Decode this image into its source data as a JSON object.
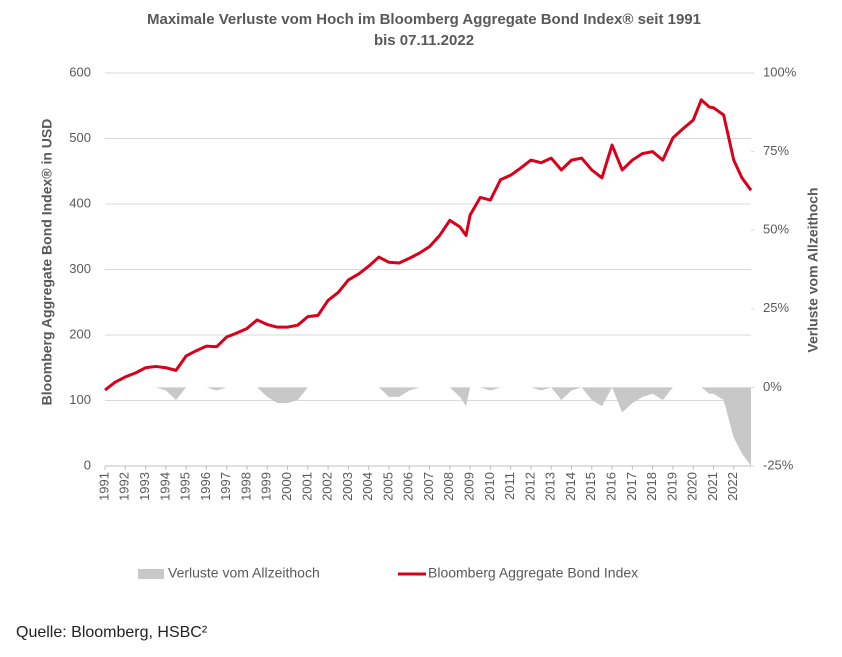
{
  "chart_data": {
    "type": "line",
    "title": [
      "Maximale Verluste vom Hoch im Bloomberg Aggregate Bond Index® seit 1991",
      "bis 07.11.2022"
    ],
    "y_label": "Bloomberg Aggregate Bond Index® in USD",
    "y2_label": "Verluste vom Allzeithoch",
    "source": "Quelle: Bloomberg, HSBC²",
    "x": [
      1991,
      1991.5,
      1992,
      1992.5,
      1993,
      1993.5,
      1994,
      1994.5,
      1995,
      1995.5,
      1996,
      1996.5,
      1997,
      1997.5,
      1998,
      1998.5,
      1999,
      1999.5,
      2000,
      2000.5,
      2001,
      2001.5,
      2002,
      2002.5,
      2003,
      2003.5,
      2004,
      2004.5,
      2005,
      2005.5,
      2006,
      2006.5,
      2007,
      2007.5,
      2008,
      2008.5,
      2008.8,
      2009,
      2009.5,
      2010,
      2010.5,
      2011,
      2011.5,
      2012,
      2012.5,
      2013,
      2013.5,
      2014,
      2014.5,
      2015,
      2015.5,
      2016,
      2016.5,
      2017,
      2017.5,
      2018,
      2018.5,
      2019,
      2019.5,
      2020,
      2020.4,
      2020.8,
      2021,
      2021.5,
      2022,
      2022.4,
      2022.85
    ],
    "xlim": [
      1991,
      2022.85
    ],
    "xticks": [
      1991,
      1992,
      1993,
      1994,
      1995,
      1996,
      1997,
      1998,
      1999,
      2000,
      2001,
      2002,
      2003,
      2004,
      2005,
      2006,
      2007,
      2008,
      2009,
      2010,
      2011,
      2012,
      2013,
      2014,
      2015,
      2016,
      2017,
      2018,
      2019,
      2020,
      2021,
      2022
    ],
    "ylim": [
      0,
      600
    ],
    "yticks": [
      0,
      100,
      200,
      300,
      400,
      500,
      600
    ],
    "y2lim": [
      -25,
      100
    ],
    "y2ticks": [
      {
        "value": -25,
        "label": "-25%"
      },
      {
        "value": 0,
        "label": "0%"
      },
      {
        "value": 25,
        "label": "25%"
      },
      {
        "value": 50,
        "label": "50%"
      },
      {
        "value": 75,
        "label": "75%"
      },
      {
        "value": 100,
        "label": "100%"
      }
    ],
    "grid": true,
    "series": [
      {
        "name": "Verluste vom Allzeithoch",
        "type": "area",
        "axis": "y2",
        "color": "#c8c8c8",
        "values": [
          0,
          0,
          0,
          0,
          0,
          0,
          -1,
          -4,
          0,
          0,
          0,
          -1,
          0,
          0,
          0,
          0,
          -3,
          -5,
          -5,
          -4,
          0,
          0,
          0,
          0,
          0,
          0,
          0,
          0,
          -3,
          -3,
          -1,
          0,
          0,
          0,
          0,
          -3,
          -6,
          0,
          0,
          -1,
          0,
          0,
          0,
          0,
          -1,
          0,
          -4,
          -1,
          0,
          -4,
          -6,
          0,
          -8,
          -5,
          -3,
          -2,
          -4,
          0,
          0,
          0,
          0,
          -2,
          -2,
          -4,
          -16,
          -21,
          -25
        ]
      },
      {
        "name": "Bloomberg Aggregate Bond Index",
        "type": "line",
        "color": "#d9001b",
        "values": [
          116,
          128,
          136,
          142,
          150,
          152,
          150,
          146,
          168,
          176,
          183,
          182,
          197,
          203,
          210,
          223,
          216,
          212,
          212,
          215,
          228,
          230,
          253,
          265,
          284,
          293,
          305,
          319,
          311,
          310,
          317,
          325,
          335,
          352,
          375,
          365,
          352,
          383,
          410,
          406,
          437,
          444,
          455,
          467,
          463,
          470,
          452,
          467,
          470,
          452,
          440,
          490,
          452,
          467,
          477,
          480,
          467,
          501,
          515,
          528,
          559,
          548,
          547,
          536,
          467,
          440,
          421
        ]
      }
    ]
  }
}
